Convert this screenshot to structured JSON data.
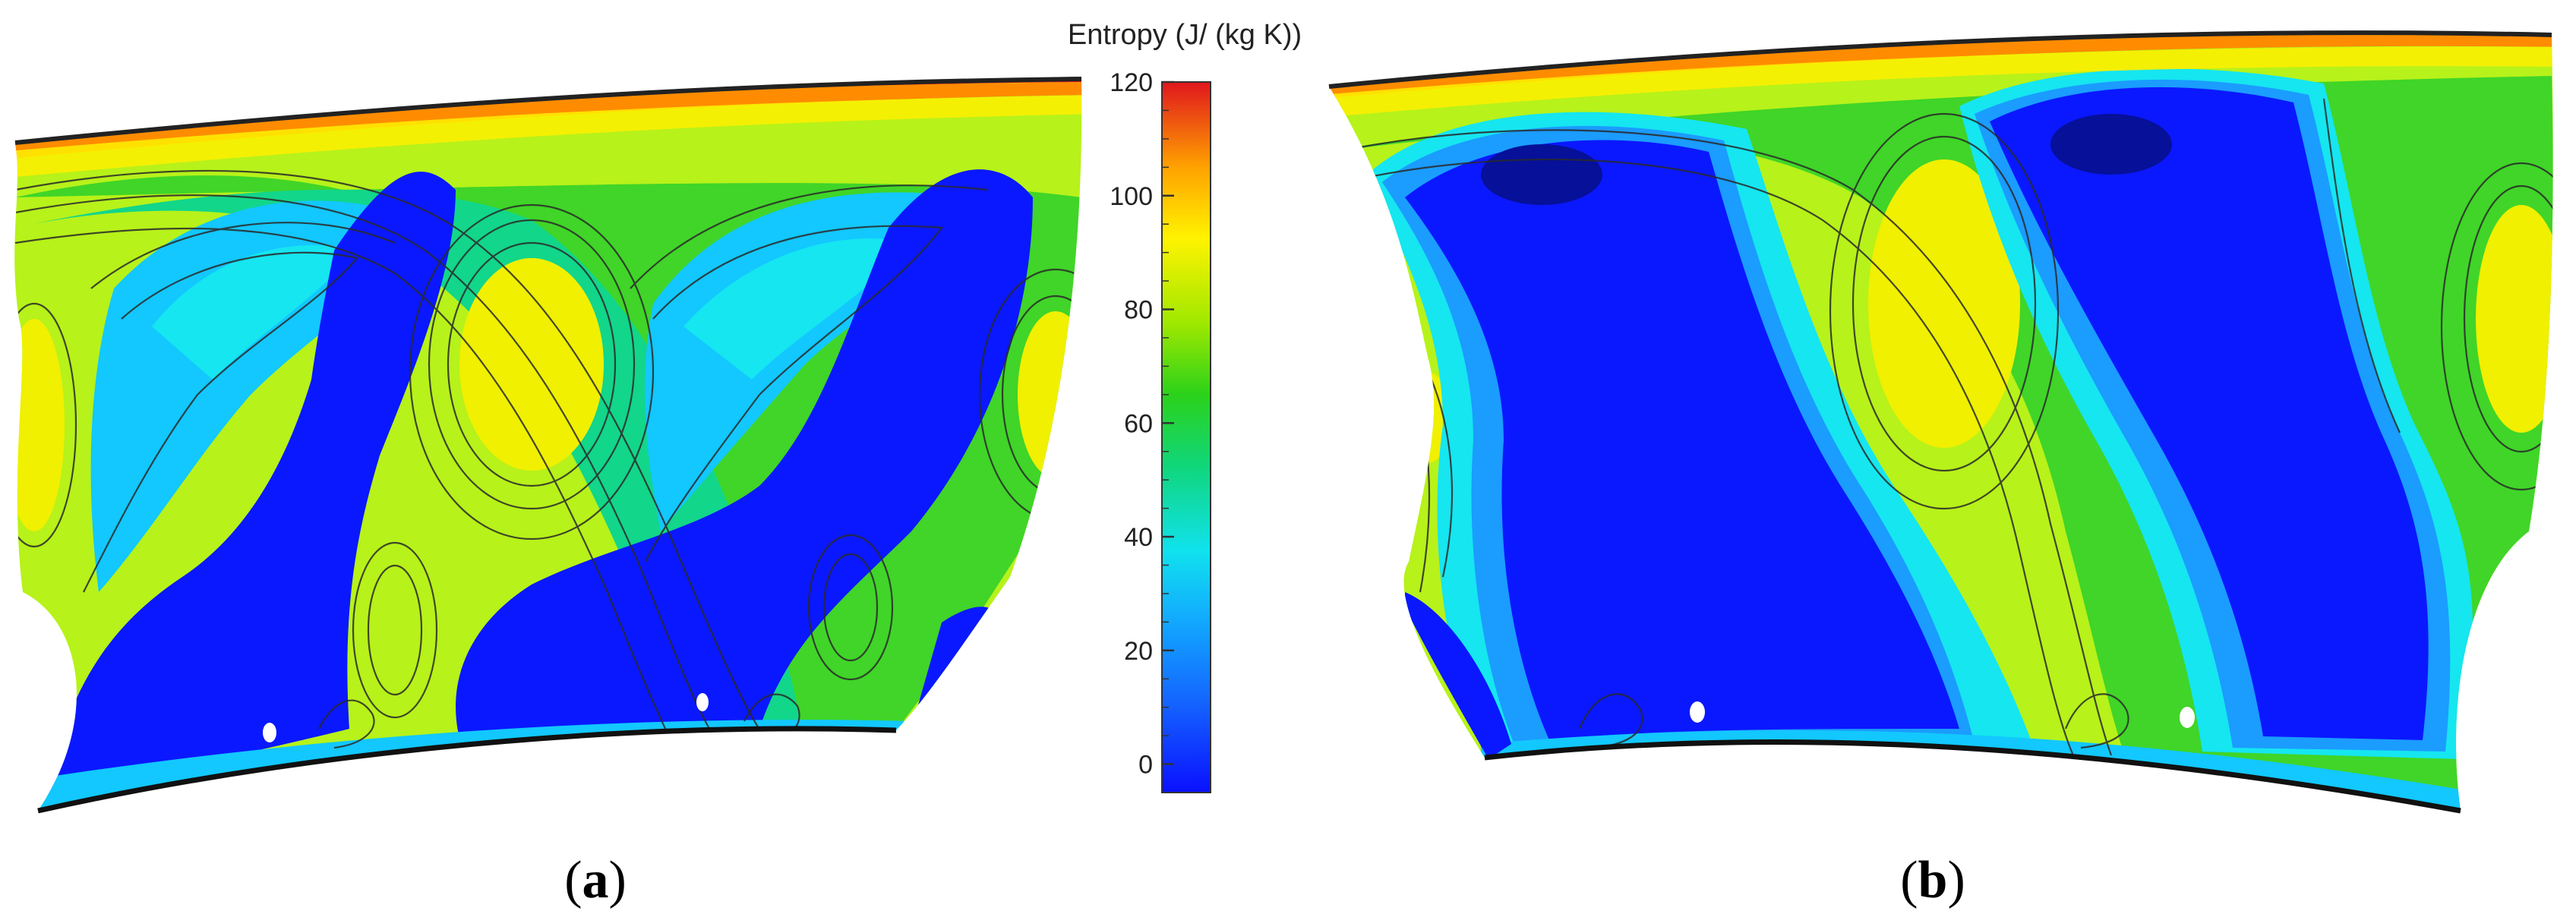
{
  "figure": {
    "colorbar": {
      "title": "Entropy (J/ (kg K))",
      "min": -5,
      "max": 120,
      "ticks": [
        {
          "value": 120,
          "label": "120"
        },
        {
          "value": 100,
          "label": "100"
        },
        {
          "value": 80,
          "label": "80"
        },
        {
          "value": 60,
          "label": "60"
        },
        {
          "value": 40,
          "label": "40"
        },
        {
          "value": 20,
          "label": "20"
        },
        {
          "value": 0,
          "label": "0"
        }
      ],
      "colors": [
        "#0a1aff",
        "#1b73ff",
        "#12d6f5",
        "#0fd27a",
        "#3bd11a",
        "#c6f000",
        "#fff700",
        "#ffb000",
        "#ff5a00",
        "#e0161d"
      ]
    },
    "panels": [
      {
        "label_open": "(",
        "label_letter": "a",
        "label_close": ")"
      },
      {
        "label_open": "(",
        "label_letter": "b",
        "label_close": ")"
      }
    ]
  }
}
